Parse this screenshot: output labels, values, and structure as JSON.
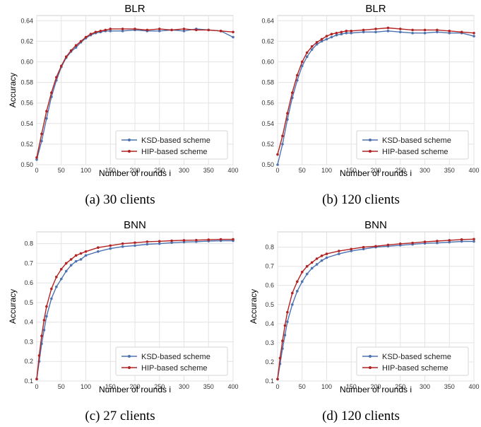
{
  "chart_data": [
    {
      "type": "line",
      "title": "BLR",
      "caption": "(a)  30 clients",
      "xlabel": "Number of rounds i",
      "ylabel": "Accuracy",
      "xlim": [
        0,
        400
      ],
      "ylim": [
        0.5,
        0.645
      ],
      "xticks": [
        0,
        50,
        100,
        150,
        200,
        250,
        300,
        350,
        400
      ],
      "yticks": [
        0.5,
        0.52,
        0.54,
        0.56,
        0.58,
        0.6,
        0.62,
        0.64
      ],
      "ytick_labels": [
        "0.50",
        "0.52",
        "0.54",
        "0.56",
        "0.58",
        "0.60",
        "0.62",
        "0.64"
      ],
      "grid": true,
      "legend_position": "lower-right",
      "series": [
        {
          "name": "KSD-based scheme",
          "color": "#4c72b0",
          "x": [
            0,
            10,
            20,
            30,
            40,
            50,
            60,
            70,
            80,
            90,
            100,
            110,
            120,
            130,
            140,
            150,
            175,
            200,
            225,
            250,
            275,
            300,
            325,
            350,
            375,
            400
          ],
          "y": [
            0.505,
            0.523,
            0.545,
            0.566,
            0.582,
            0.595,
            0.604,
            0.61,
            0.614,
            0.619,
            0.623,
            0.626,
            0.628,
            0.629,
            0.63,
            0.63,
            0.63,
            0.631,
            0.63,
            0.63,
            0.631,
            0.63,
            0.632,
            0.631,
            0.63,
            0.624
          ]
        },
        {
          "name": "HIP-based scheme",
          "color": "#b22222",
          "x": [
            0,
            10,
            20,
            30,
            40,
            50,
            60,
            70,
            80,
            90,
            100,
            110,
            120,
            130,
            140,
            150,
            175,
            200,
            225,
            250,
            275,
            300,
            325,
            350,
            375,
            400
          ],
          "y": [
            0.507,
            0.53,
            0.552,
            0.57,
            0.585,
            0.596,
            0.605,
            0.611,
            0.616,
            0.62,
            0.624,
            0.627,
            0.629,
            0.63,
            0.631,
            0.632,
            0.632,
            0.632,
            0.631,
            0.632,
            0.631,
            0.632,
            0.631,
            0.631,
            0.63,
            0.629
          ]
        }
      ]
    },
    {
      "type": "line",
      "title": "BLR",
      "caption": "(b)  120 clients",
      "xlabel": "Number of rounds i",
      "ylabel": "",
      "xlim": [
        0,
        400
      ],
      "ylim": [
        0.5,
        0.645
      ],
      "xticks": [
        0,
        50,
        100,
        150,
        200,
        250,
        300,
        350,
        400
      ],
      "yticks": [
        0.5,
        0.52,
        0.54,
        0.56,
        0.58,
        0.6,
        0.62,
        0.64
      ],
      "ytick_labels": [
        "0.50",
        "0.52",
        "0.54",
        "0.56",
        "0.58",
        "0.60",
        "0.62",
        "0.64"
      ],
      "grid": true,
      "legend_position": "lower-right",
      "series": [
        {
          "name": "KSD-based scheme",
          "color": "#4c72b0",
          "x": [
            0,
            10,
            20,
            30,
            40,
            50,
            60,
            70,
            80,
            90,
            100,
            110,
            120,
            130,
            140,
            150,
            175,
            200,
            225,
            250,
            275,
            300,
            325,
            350,
            375,
            400
          ],
          "y": [
            0.5,
            0.52,
            0.544,
            0.565,
            0.582,
            0.596,
            0.605,
            0.612,
            0.617,
            0.62,
            0.622,
            0.624,
            0.626,
            0.627,
            0.628,
            0.628,
            0.629,
            0.629,
            0.63,
            0.629,
            0.628,
            0.628,
            0.629,
            0.628,
            0.628,
            0.625
          ]
        },
        {
          "name": "HIP-based scheme",
          "color": "#b22222",
          "x": [
            0,
            10,
            20,
            30,
            40,
            50,
            60,
            70,
            80,
            90,
            100,
            110,
            120,
            130,
            140,
            150,
            175,
            200,
            225,
            250,
            275,
            300,
            325,
            350,
            375,
            400
          ],
          "y": [
            0.51,
            0.528,
            0.55,
            0.57,
            0.587,
            0.6,
            0.609,
            0.615,
            0.619,
            0.622,
            0.625,
            0.627,
            0.628,
            0.629,
            0.63,
            0.63,
            0.631,
            0.632,
            0.633,
            0.632,
            0.631,
            0.631,
            0.631,
            0.63,
            0.629,
            0.628
          ]
        }
      ]
    },
    {
      "type": "line",
      "title": "BNN",
      "caption": "(c)  27 clients",
      "xlabel": "Number of rounds i",
      "ylabel": "Accuracy",
      "xlim": [
        0,
        400
      ],
      "ylim": [
        0.1,
        0.86
      ],
      "xticks": [
        0,
        50,
        100,
        150,
        200,
        250,
        300,
        350,
        400
      ],
      "yticks": [
        0.1,
        0.2,
        0.3,
        0.4,
        0.5,
        0.6,
        0.7,
        0.8
      ],
      "ytick_labels": [
        "0.1",
        "0.2",
        "0.3",
        "0.4",
        "0.5",
        "0.6",
        "0.7",
        "0.8"
      ],
      "grid": true,
      "legend_position": "lower-right",
      "series": [
        {
          "name": "KSD-based scheme",
          "color": "#4c72b0",
          "x": [
            0,
            5,
            10,
            15,
            20,
            30,
            40,
            50,
            60,
            70,
            80,
            90,
            100,
            125,
            150,
            175,
            200,
            225,
            250,
            275,
            300,
            325,
            350,
            375,
            400
          ],
          "y": [
            0.11,
            0.2,
            0.29,
            0.36,
            0.43,
            0.52,
            0.58,
            0.62,
            0.66,
            0.69,
            0.71,
            0.72,
            0.74,
            0.76,
            0.775,
            0.785,
            0.79,
            0.797,
            0.8,
            0.805,
            0.808,
            0.81,
            0.813,
            0.815,
            0.815
          ]
        },
        {
          "name": "HIP-based scheme",
          "color": "#b22222",
          "x": [
            0,
            5,
            10,
            15,
            20,
            30,
            40,
            50,
            60,
            70,
            80,
            90,
            100,
            125,
            150,
            175,
            200,
            225,
            250,
            275,
            300,
            325,
            350,
            375,
            400
          ],
          "y": [
            0.11,
            0.23,
            0.33,
            0.41,
            0.48,
            0.57,
            0.63,
            0.67,
            0.7,
            0.72,
            0.74,
            0.75,
            0.76,
            0.78,
            0.79,
            0.8,
            0.805,
            0.81,
            0.812,
            0.815,
            0.817,
            0.818,
            0.82,
            0.822,
            0.822
          ]
        }
      ]
    },
    {
      "type": "line",
      "title": "BNN",
      "caption": "(d)  120 clients",
      "xlabel": "Number of rounds i",
      "ylabel": "Accuracy",
      "xlim": [
        0,
        400
      ],
      "ylim": [
        0.1,
        0.88
      ],
      "xticks": [
        0,
        50,
        100,
        150,
        200,
        250,
        300,
        350,
        400
      ],
      "yticks": [
        0.1,
        0.2,
        0.3,
        0.4,
        0.5,
        0.6,
        0.7,
        0.8
      ],
      "ytick_labels": [
        "0.1",
        "0.2",
        "0.3",
        "0.4",
        "0.5",
        "0.6",
        "0.7",
        "0.8"
      ],
      "grid": true,
      "legend_position": "lower-right",
      "series": [
        {
          "name": "KSD-based scheme",
          "color": "#4c72b0",
          "x": [
            0,
            5,
            10,
            15,
            20,
            30,
            40,
            50,
            60,
            70,
            80,
            90,
            100,
            125,
            150,
            175,
            200,
            225,
            250,
            275,
            300,
            325,
            350,
            375,
            400
          ],
          "y": [
            0.11,
            0.19,
            0.27,
            0.34,
            0.41,
            0.5,
            0.57,
            0.62,
            0.66,
            0.69,
            0.71,
            0.73,
            0.745,
            0.765,
            0.78,
            0.79,
            0.8,
            0.805,
            0.81,
            0.815,
            0.82,
            0.822,
            0.826,
            0.83,
            0.83
          ]
        },
        {
          "name": "HIP-based scheme",
          "color": "#b22222",
          "x": [
            0,
            5,
            10,
            15,
            20,
            30,
            40,
            50,
            60,
            70,
            80,
            90,
            100,
            125,
            150,
            175,
            200,
            225,
            250,
            275,
            300,
            325,
            350,
            375,
            400
          ],
          "y": [
            0.11,
            0.22,
            0.31,
            0.39,
            0.46,
            0.56,
            0.62,
            0.67,
            0.7,
            0.72,
            0.74,
            0.755,
            0.765,
            0.78,
            0.79,
            0.8,
            0.805,
            0.812,
            0.818,
            0.822,
            0.828,
            0.832,
            0.836,
            0.84,
            0.842
          ]
        }
      ]
    }
  ]
}
